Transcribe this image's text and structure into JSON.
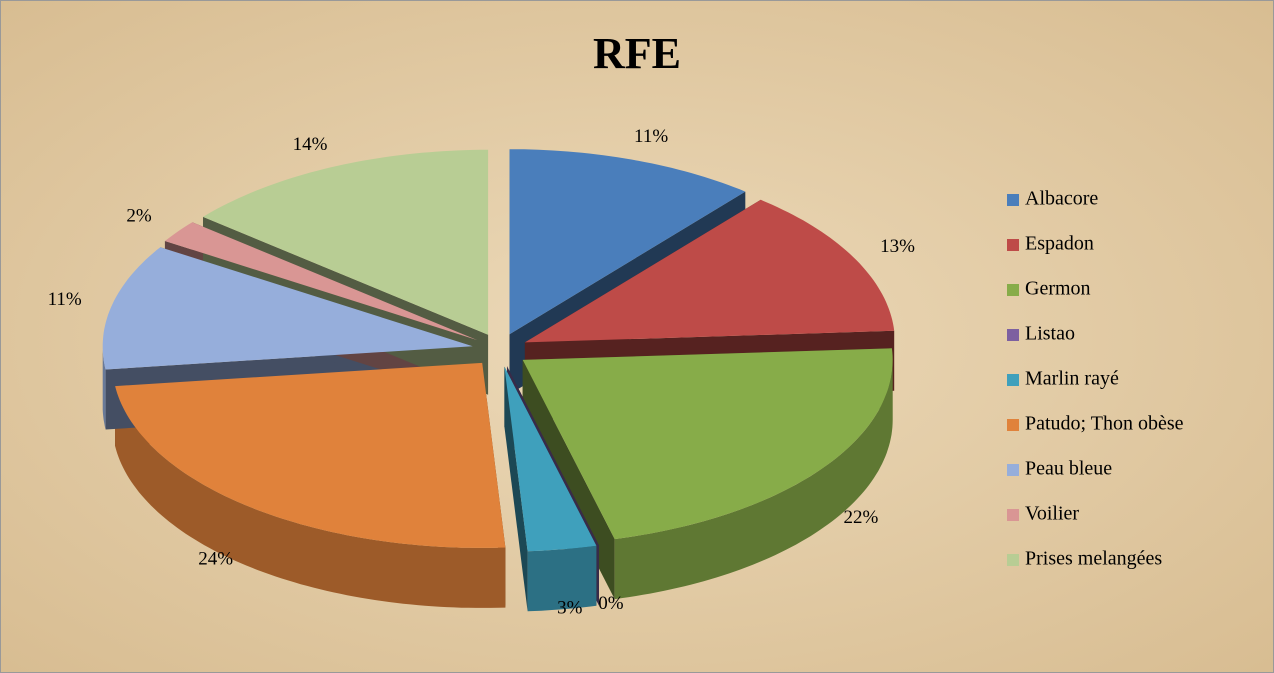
{
  "chart_data": {
    "type": "pie",
    "title": "RFE",
    "categories": [
      "Albacore",
      "Espadon",
      "Germon",
      "Listao",
      "Marlin rayé",
      "Patudo; Thon obèse",
      "Peau bleue",
      "Voilier",
      "Prises melangées"
    ],
    "values": [
      11,
      13,
      22,
      0,
      3,
      24,
      11,
      2,
      14
    ],
    "value_labels": [
      "11%",
      "13%",
      "22%",
      "0%",
      "3%",
      "24%",
      "11%",
      "2%",
      "14%"
    ],
    "colors": [
      "#4a7ebb",
      "#be4b48",
      "#87ac49",
      "#7d60a0",
      "#3fa0bc",
      "#e0823b",
      "#96aedb",
      "#d99694",
      "#b8cd94"
    ],
    "legend": "right"
  }
}
